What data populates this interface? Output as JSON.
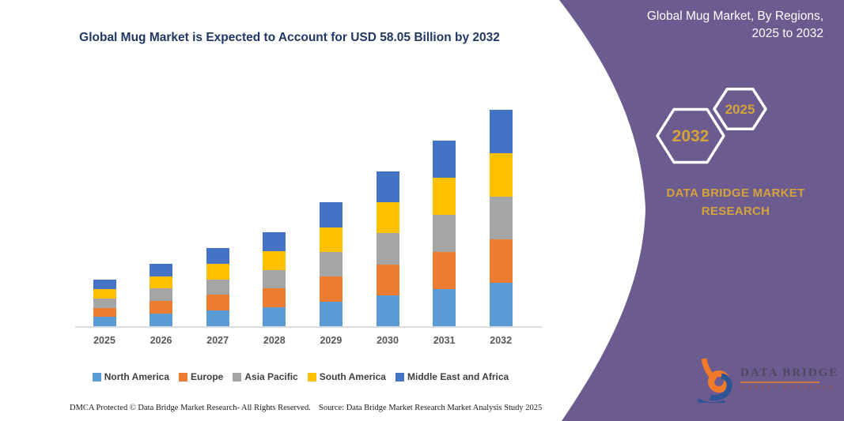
{
  "page": {
    "title": "Global Mug Market is Expected to Account for USD 58.05 Billion by 2032"
  },
  "panel": {
    "heading_line1": "Global Mug Market, By Regions,",
    "heading_line2": "2025 to 2032",
    "hexagon_left_label": "2032",
    "hexagon_right_label": "2025",
    "brand_text": "DATA BRIDGE MARKET RESEARCH",
    "colors": {
      "background": "#6C5B8F",
      "accent_gold": "#D4A33C",
      "hexagon_border": "#FFFFFF"
    }
  },
  "logo": {
    "name": "DATA BRIDGE",
    "subtitle": "MARKET RESEARCH"
  },
  "footer": {
    "dmca": "DMCA Protected © Data Bridge Market Research-  All Rights Reserved.",
    "source": "Source: Data Bridge Market Research  Market Analysis Study 2025"
  },
  "chart_data": {
    "type": "bar",
    "stacked": true,
    "title": "Global Mug Market is Expected to Account for USD 58.05 Billion by 2032",
    "xlabel": "",
    "ylabel": "",
    "ylim": [
      0,
      60
    ],
    "grid": false,
    "legend_position": "bottom",
    "categories": [
      "2025",
      "2026",
      "2027",
      "2028",
      "2029",
      "2030",
      "2031",
      "2032"
    ],
    "totals_usd_billion": [
      12.4,
      16.8,
      21.0,
      25.2,
      33.2,
      41.5,
      49.8,
      58.05
    ],
    "series": [
      {
        "name": "North America",
        "color": "#5B9BD5",
        "values": [
          2.48,
          3.36,
          4.2,
          5.04,
          6.64,
          8.3,
          9.96,
          11.61
        ]
      },
      {
        "name": "Europe",
        "color": "#ED7D31",
        "values": [
          2.48,
          3.36,
          4.2,
          5.04,
          6.64,
          8.3,
          9.96,
          11.61
        ]
      },
      {
        "name": "Asia Pacific",
        "color": "#A5A5A5",
        "values": [
          2.48,
          3.36,
          4.2,
          5.04,
          6.64,
          8.3,
          9.96,
          11.61
        ]
      },
      {
        "name": "South America",
        "color": "#FFC000",
        "values": [
          2.48,
          3.36,
          4.2,
          5.04,
          6.64,
          8.3,
          9.96,
          11.61
        ]
      },
      {
        "name": "Middle East and Africa",
        "color": "#4472C4",
        "values": [
          2.48,
          3.36,
          4.2,
          5.04,
          6.64,
          8.3,
          9.96,
          11.61
        ]
      }
    ]
  }
}
